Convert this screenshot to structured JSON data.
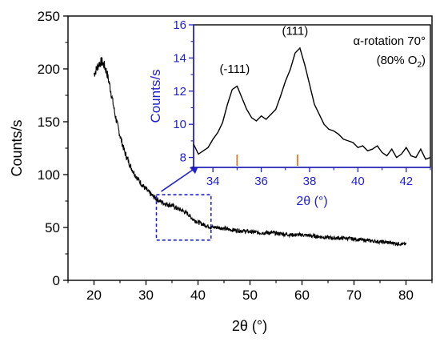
{
  "chart_data": [
    {
      "type": "line",
      "xlabel": "2θ (°)",
      "ylabel": "Counts/s",
      "xlim": [
        15,
        85
      ],
      "ylim": [
        0,
        250
      ],
      "xticks": [
        20,
        30,
        40,
        50,
        60,
        70,
        80
      ],
      "yticks": [
        0,
        50,
        100,
        150,
        200,
        250
      ],
      "grid": false,
      "line_color": "#000000",
      "series": [
        {
          "x": [
            20,
            20.5,
            21,
            21.5,
            22,
            22.5,
            23,
            23.5,
            24,
            24.5,
            25,
            25.5,
            26,
            27,
            28,
            29,
            30,
            31,
            32,
            33,
            34,
            35,
            36,
            37,
            38,
            39,
            40,
            41,
            42,
            43,
            44,
            45,
            46,
            48,
            50,
            52,
            54,
            56,
            58,
            60,
            62,
            64,
            66,
            68,
            70,
            72,
            74,
            76,
            78,
            80
          ],
          "y": [
            195,
            200,
            205,
            207,
            203,
            196,
            185,
            172,
            158,
            147,
            137,
            128,
            120,
            108,
            99,
            92,
            86,
            81,
            77,
            74,
            72,
            71,
            68,
            66,
            63,
            58,
            55,
            53,
            51,
            50,
            50,
            49,
            48,
            47,
            46,
            45,
            45,
            44,
            43,
            43,
            42,
            41,
            40,
            40,
            39,
            38,
            37,
            36,
            35,
            34
          ]
        }
      ],
      "annotation_box": {
        "x": [
          32,
          42.5
        ],
        "y": [
          38,
          81
        ],
        "color": "#2222cc"
      }
    },
    {
      "type": "line",
      "role": "inset",
      "xlabel": "2θ (°)",
      "ylabel": "Counts/s",
      "xlim": [
        33.2,
        43
      ],
      "ylim": [
        7.4,
        16
      ],
      "xticks": [
        34,
        36,
        38,
        40,
        42
      ],
      "yticks": [
        8,
        10,
        12,
        14,
        16
      ],
      "axis_color": "#2222cc",
      "line_color": "#000000",
      "series": [
        {
          "x": [
            33.2,
            33.4,
            33.6,
            33.8,
            34.0,
            34.2,
            34.4,
            34.6,
            34.8,
            35.0,
            35.2,
            35.4,
            35.6,
            35.8,
            36.0,
            36.2,
            36.4,
            36.6,
            36.8,
            37.0,
            37.2,
            37.4,
            37.6,
            37.8,
            38.0,
            38.2,
            38.4,
            38.6,
            38.8,
            39.0,
            39.2,
            39.4,
            39.6,
            39.8,
            40.0,
            40.2,
            40.4,
            40.6,
            40.8,
            41.0,
            41.2,
            41.4,
            41.6,
            41.8,
            42.0,
            42.2,
            42.4,
            42.6,
            42.8,
            43.0
          ],
          "y": [
            8.8,
            8.2,
            8.4,
            8.6,
            9.1,
            9.5,
            10.1,
            11.2,
            12.1,
            12.3,
            11.6,
            10.9,
            10.4,
            10.2,
            10.5,
            10.3,
            10.6,
            10.9,
            11.7,
            12.6,
            13.3,
            14.3,
            14.6,
            13.6,
            12.4,
            11.2,
            10.6,
            10.0,
            9.7,
            9.6,
            9.4,
            9.1,
            9.0,
            8.9,
            8.6,
            8.7,
            8.4,
            8.5,
            8.7,
            8.3,
            8.1,
            8.5,
            8.0,
            8.2,
            8.6,
            8.1,
            8.0,
            8.5,
            7.9,
            8.0
          ]
        }
      ],
      "reference_ticks": [
        35.0,
        37.5
      ],
      "reference_color": "#e87722",
      "annotations": [
        {
          "text": "(-111)",
          "x": 34.9,
          "y": 13.1
        },
        {
          "text": "(111)",
          "x": 37.4,
          "y": 15.4
        }
      ],
      "legend": {
        "line1": "α-rotation 70°",
        "line2_prefix": "(80% O",
        "line2_sub": "2",
        "line2_suffix": ")",
        "position": "top-right"
      }
    }
  ]
}
